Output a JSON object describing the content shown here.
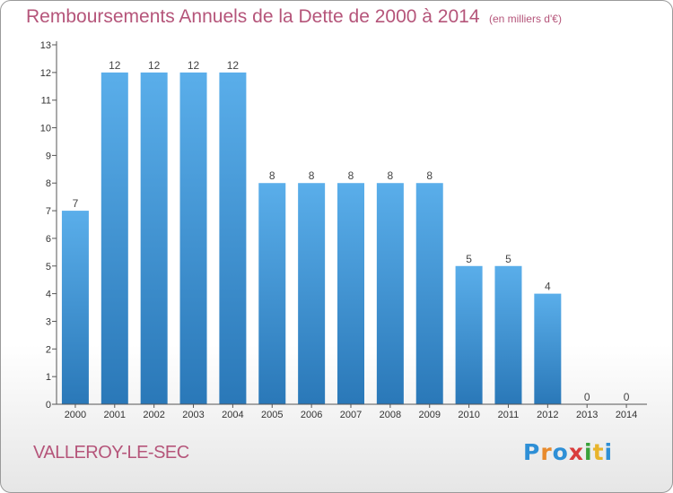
{
  "title": "Remboursements Annuels de la Dette de 2000 à 2014",
  "unit_note": "(en milliers d'€)",
  "city": "VALLEROY-LE-SEC",
  "logo": {
    "letters": [
      "P",
      "r",
      "o",
      "x",
      "i",
      "t",
      "i"
    ],
    "colors": [
      "#2e8fd6",
      "#e88a2c",
      "#2e8fd6",
      "#d93c3c",
      "#3aa13a",
      "#e8b42c",
      "#2e8fd6"
    ]
  },
  "colors": {
    "bar_light": "#5aaeea",
    "bar_dark": "#2a78b8",
    "title": "#b5557a",
    "axis": "#555555"
  },
  "chart_data": {
    "type": "bar",
    "categories": [
      "2000",
      "2001",
      "2002",
      "2003",
      "2004",
      "2005",
      "2006",
      "2007",
      "2008",
      "2009",
      "2010",
      "2011",
      "2012",
      "2013",
      "2014"
    ],
    "values": [
      7,
      12,
      12,
      12,
      12,
      8,
      8,
      8,
      8,
      8,
      5,
      5,
      4,
      0,
      0
    ],
    "ylim": [
      0,
      13
    ],
    "yticks": [
      0,
      1,
      2,
      3,
      4,
      5,
      6,
      7,
      8,
      9,
      10,
      11,
      12,
      13
    ],
    "grid": false,
    "data_labels": true
  }
}
